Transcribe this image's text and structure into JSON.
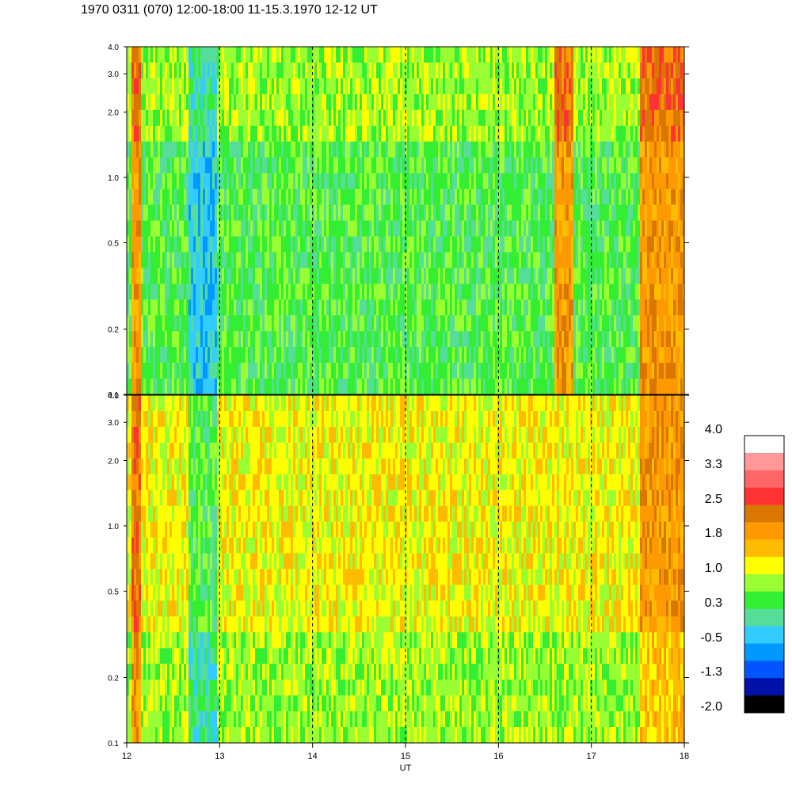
{
  "title": "1970 0311 (070) 12:00-18:00 11-15.3.1970  12-12 UT",
  "chart_data": {
    "type": "heatmap",
    "title": "1970 0311 (070) 12:00-18:00 11-15.3.1970  12-12 UT",
    "xlabel": "UT",
    "x_ticks": [
      "12",
      "13",
      "14",
      "15",
      "16",
      "17",
      "18"
    ],
    "xlim": [
      12,
      18
    ],
    "y_scale": "log",
    "ylim": [
      0.1,
      4.0
    ],
    "y_ticks": [
      "0.1",
      "0.2",
      "0.5",
      "1.0",
      "2.0",
      "3.0",
      "4.0"
    ],
    "grid": "dashed vertical lines at each hour",
    "panels": [
      {
        "name": "upper",
        "dominant_level": "0.3",
        "features": [
          {
            "x": [
              12.05,
              12.15
            ],
            "level": "1.8"
          },
          {
            "x": [
              12.65,
              12.95
            ],
            "level": "-0.5"
          },
          {
            "x": [
              16.6,
              16.8
            ],
            "level": "1.8"
          },
          {
            "x": [
              17.5,
              18.0
            ],
            "level": "1.8"
          }
        ]
      },
      {
        "name": "lower",
        "dominant_level": "1.0",
        "features": [
          {
            "x": [
              12.05,
              12.15
            ],
            "level": "2.5"
          },
          {
            "x": [
              12.65,
              12.95
            ],
            "level": "0.3"
          },
          {
            "x": [
              17.5,
              18.0
            ],
            "level": "1.8"
          }
        ]
      }
    ],
    "colorbar": {
      "labels": [
        "4.0",
        "3.3",
        "2.5",
        "1.8",
        "1.0",
        "0.3",
        "-0.5",
        "-1.3",
        "-2.0"
      ],
      "colors": [
        "#ffffff",
        "#ff9999",
        "#ff6666",
        "#ff3333",
        "#d97700",
        "#ff9900",
        "#ffbb00",
        "#ffff00",
        "#99ff33",
        "#33ee33",
        "#55dd99",
        "#33ccff",
        "#0099ff",
        "#0055ff",
        "#0011aa",
        "#000000"
      ]
    }
  }
}
